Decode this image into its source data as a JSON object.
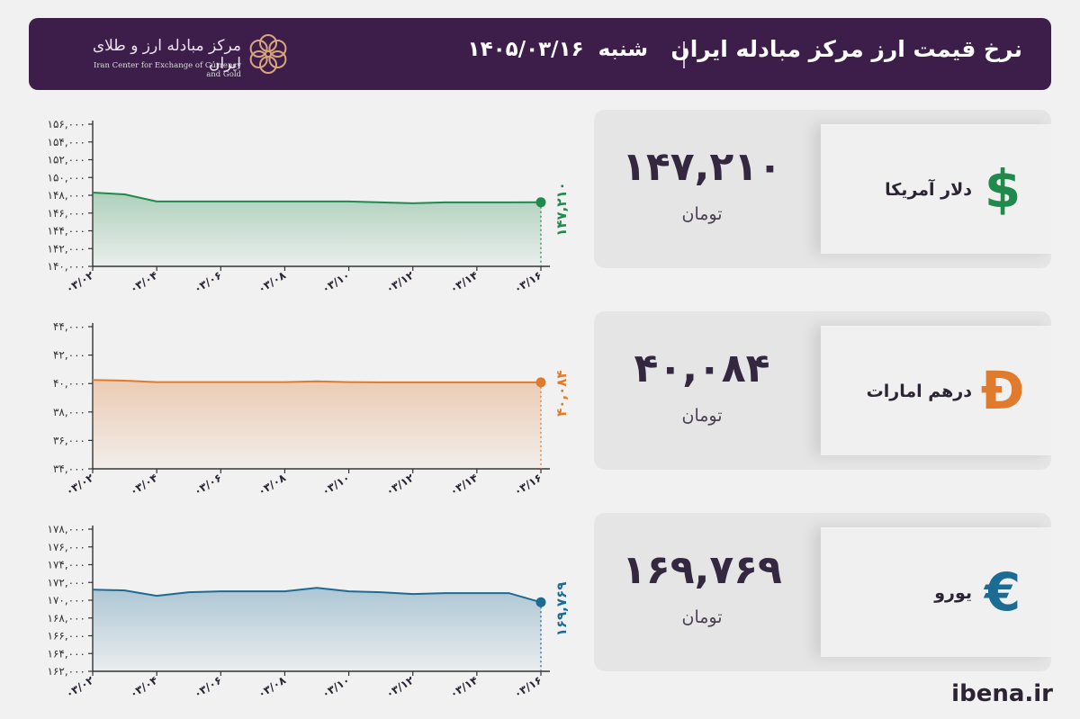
{
  "header": {
    "title": "نرخ قیمت ارز مرکز مبادله ایران",
    "day": "شنبه",
    "date": "۱۴۰۵/۰۳/۱۶",
    "logo_fa": "مرکز مبادله ارز و طلای ایران",
    "logo_en": "Iran Center for Exchange of Currency and Gold"
  },
  "footer": {
    "site": "ibena.ir"
  },
  "cards": [
    {
      "name": "دلار آمریکا",
      "symbol": "$",
      "price": "۱۴۷,۲۱۰",
      "unit": "تومان",
      "color": "#1f8a4c",
      "icon": "dollar-icon"
    },
    {
      "name": "درهم امارات",
      "symbol": "Đ",
      "price": "۴۰,۰۸۴",
      "unit": "تومان",
      "color": "#e07b2e",
      "icon": "dirham-icon"
    },
    {
      "name": "یورو",
      "symbol": "€",
      "price": "۱۶۹,۷۶۹",
      "unit": "تومان",
      "color": "#1c6b94",
      "icon": "euro-icon"
    }
  ],
  "chart_data": [
    {
      "type": "area",
      "series": [
        {
          "values": [
            148300,
            148100,
            147300,
            147300,
            147300,
            147300,
            147300,
            147300,
            147300,
            147200,
            147100,
            147200,
            147200,
            147200,
            147210
          ]
        }
      ],
      "x": [
        "03/02",
        "03/03",
        "03/04",
        "03/05",
        "03/06",
        "03/07",
        "03/08",
        "03/09",
        "03/10",
        "03/11",
        "03/12",
        "03/13",
        "03/14",
        "03/15",
        "03/16"
      ],
      "x_tick_labels": [
        "۰۳/۰۲",
        "۰۳/۰۴",
        "۰۳/۰۶",
        "۰۳/۰۸",
        "۰۳/۱۰",
        "۰۳/۱۲",
        "۰۳/۱۴",
        "۰۳/۱۶"
      ],
      "y_tick_labels": [
        "۱۴۰,۰۰۰",
        "۱۴۲,۰۰۰",
        "۱۴۴,۰۰۰",
        "۱۴۶,۰۰۰",
        "۱۴۸,۰۰۰",
        "۱۵۰,۰۰۰",
        "۱۵۲,۰۰۰",
        "۱۵۴,۰۰۰",
        "۱۵۶,۰۰۰"
      ],
      "ylim": [
        140000,
        156000
      ],
      "last_label": "۱۴۷,۲۱۰",
      "color": "#1f8a4c"
    },
    {
      "type": "area",
      "series": [
        {
          "values": [
            40250,
            40200,
            40100,
            40100,
            40100,
            40100,
            40100,
            40150,
            40100,
            40084,
            40084,
            40084,
            40084,
            40084,
            40084
          ]
        }
      ],
      "x": [
        "03/02",
        "03/03",
        "03/04",
        "03/05",
        "03/06",
        "03/07",
        "03/08",
        "03/09",
        "03/10",
        "03/11",
        "03/12",
        "03/13",
        "03/14",
        "03/15",
        "03/16"
      ],
      "x_tick_labels": [
        "۰۳/۰۲",
        "۰۳/۰۴",
        "۰۳/۰۶",
        "۰۳/۰۸",
        "۰۳/۱۰",
        "۰۳/۱۲",
        "۰۳/۱۴",
        "۰۳/۱۶"
      ],
      "y_tick_labels": [
        "۳۴,۰۰۰",
        "۳۶,۰۰۰",
        "۳۸,۰۰۰",
        "۴۰,۰۰۰",
        "۴۲,۰۰۰",
        "۴۴,۰۰۰"
      ],
      "ylim": [
        34000,
        44000
      ],
      "last_label": "۴۰,۰۸۴",
      "color": "#e07b2e"
    },
    {
      "type": "area",
      "series": [
        {
          "values": [
            171200,
            171100,
            170500,
            170900,
            171000,
            171000,
            171000,
            171400,
            171000,
            170900,
            170700,
            170800,
            170800,
            170800,
            169769
          ]
        }
      ],
      "x": [
        "03/02",
        "03/03",
        "03/04",
        "03/05",
        "03/06",
        "03/07",
        "03/08",
        "03/09",
        "03/10",
        "03/11",
        "03/12",
        "03/13",
        "03/14",
        "03/15",
        "03/16"
      ],
      "x_tick_labels": [
        "۰۳/۰۲",
        "۰۳/۰۴",
        "۰۳/۰۶",
        "۰۳/۰۸",
        "۰۳/۱۰",
        "۰۳/۱۲",
        "۰۳/۱۴",
        "۰۳/۱۶"
      ],
      "y_tick_labels": [
        "۱۶۲,۰۰۰",
        "۱۶۴,۰۰۰",
        "۱۶۶,۰۰۰",
        "۱۶۸,۰۰۰",
        "۱۷۰,۰۰۰",
        "۱۷۲,۰۰۰",
        "۱۷۴,۰۰۰",
        "۱۷۶,۰۰۰",
        "۱۷۸,۰۰۰"
      ],
      "ylim": [
        162000,
        178000
      ],
      "last_label": "۱۶۹,۷۶۹",
      "color": "#1c6b94"
    }
  ]
}
